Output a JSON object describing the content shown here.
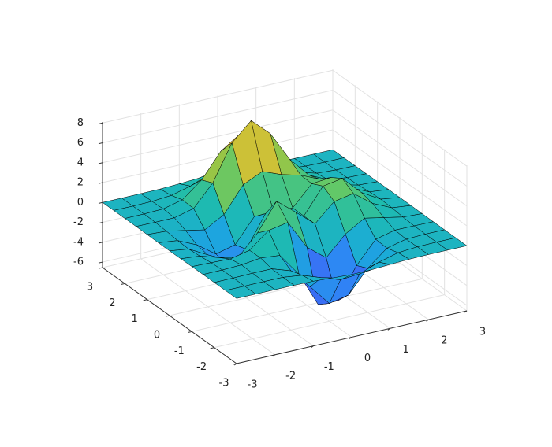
{
  "chart_data": {
    "type": "surface",
    "x": [
      -3,
      -2.5,
      -2,
      -1.5,
      -1,
      -0.5,
      0,
      0.5,
      1,
      1.5,
      2,
      2.5,
      3
    ],
    "y": [
      -3,
      -2.5,
      -2,
      -1.5,
      -1,
      -0.5,
      0,
      0.5,
      1,
      1.5,
      2,
      2.5,
      3
    ],
    "z": [
      [
        0,
        0,
        0,
        0,
        -0.03,
        -0.14,
        -0.24,
        -0.22,
        -0.11,
        -0.03,
        0,
        0,
        0
      ],
      [
        0,
        0,
        0.01,
        0,
        -0.24,
        -0.92,
        -1.57,
        -1.41,
        -0.69,
        -0.18,
        -0.03,
        0,
        0
      ],
      [
        0,
        0.01,
        0.05,
        0.05,
        -0.59,
        -2.64,
        -4.76,
        -4.35,
        -2.1,
        -0.53,
        -0.06,
        0,
        0
      ],
      [
        0,
        0.01,
        0.08,
        0.33,
        0.15,
        -2.19,
        -5.68,
        -5.76,
        -2.64,
        -0.44,
        0.04,
        0.03,
        0
      ],
      [
        -0.01,
        -0.06,
        -0.13,
        0.3,
        1.86,
        2.22,
        -0.72,
        -2.22,
        -0.27,
        0.88,
        0.5,
        0.11,
        0.01
      ],
      [
        -0.03,
        -0.2,
        -0.8,
        -1.21,
        0.8,
        3.55,
        2,
        0.39,
        2.2,
        2.56,
        1.12,
        0.24,
        0.03
      ],
      [
        -0.04,
        -0.3,
        -1.33,
        -2.77,
        -1.65,
        1.48,
        0.98,
        0.37,
        2.94,
        3.27,
        1.41,
        0.3,
        0.03
      ],
      [
        -0.03,
        -0.25,
        -1.12,
        -2.49,
        -2,
        0.39,
        0.46,
        0.38,
        2.38,
        2.56,
        1.09,
        0.23,
        0.03
      ],
      [
        -0.01,
        -0.11,
        -0.48,
        -0.86,
        0.23,
        2.79,
        3.69,
        2.93,
        2.43,
        1.58,
        0.58,
        0.11,
        0.01
      ],
      [
        0,
        -0.02,
        -0.01,
        0.48,
        2.61,
        6.2,
        8,
        6.25,
        3.25,
        1.19,
        0.29,
        0.05,
        0
      ],
      [
        0,
        0.01,
        0.08,
        0.55,
        2.1,
        4.56,
        5.86,
        4.57,
        2.21,
        0.68,
        0.13,
        0.02,
        0
      ],
      [
        0,
        0,
        0.03,
        0.19,
        0.69,
        1.47,
        1.88,
        1.47,
        0.7,
        0.21,
        0.04,
        0,
        0
      ],
      [
        0,
        0,
        0.01,
        0.03,
        0.11,
        0.23,
        0.3,
        0.23,
        0.11,
        0.03,
        0.01,
        0,
        0
      ]
    ],
    "xlim": [
      -3,
      3
    ],
    "ylim": [
      -3,
      3
    ],
    "zlim": [
      -6.55,
      8.1
    ],
    "xticks": [
      -3,
      -2,
      -1,
      0,
      1,
      2,
      3
    ],
    "yticks": [
      -3,
      -2,
      -1,
      0,
      1,
      2,
      3
    ],
    "zticks": [
      -6,
      -4,
      -2,
      0,
      2,
      4,
      6,
      8
    ],
    "colormap": [
      "#3e26a8",
      "#4358f3",
      "#2f85f5",
      "#1ba9dc",
      "#1ebcad",
      "#5cc86c",
      "#b3c435",
      "#f1bd39",
      "#f9fb15"
    ],
    "edgecolor": "#000000",
    "grid": true
  }
}
